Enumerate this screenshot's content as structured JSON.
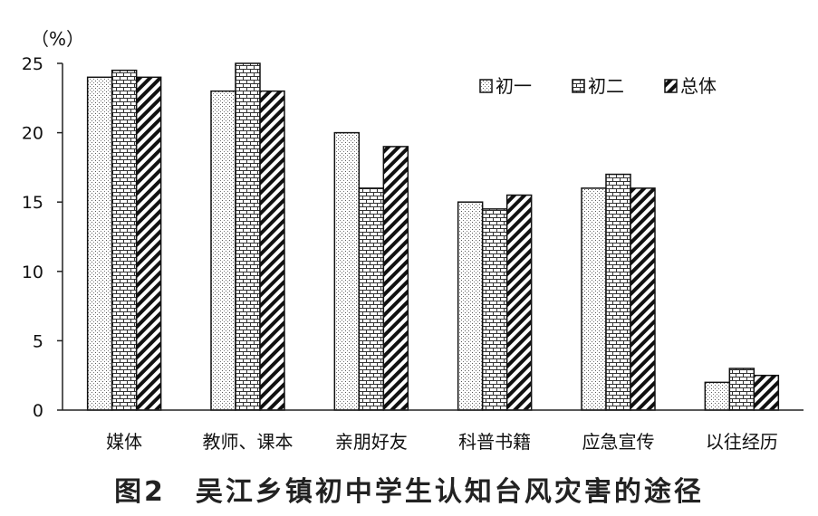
{
  "caption": "图2　吴江乡镇初中学生认知台风灾害的途径",
  "chart_data": {
    "type": "bar",
    "unit": "（%）",
    "categories": [
      "媒体",
      "教师、课本",
      "亲朋好友",
      "科普书籍",
      "应急宣传",
      "以往经历"
    ],
    "series": [
      {
        "name": "初一",
        "values": [
          24,
          23,
          20,
          15,
          16,
          2
        ],
        "pattern": "dots"
      },
      {
        "name": "初二",
        "values": [
          24.5,
          25,
          16,
          14.5,
          17,
          3
        ],
        "pattern": "bricks"
      },
      {
        "name": "总体",
        "values": [
          24,
          23,
          19,
          15.5,
          16,
          2.5
        ],
        "pattern": "hatch"
      }
    ],
    "ylim": [
      0,
      25
    ],
    "yticks": [
      0,
      5,
      10,
      15,
      20,
      25
    ],
    "legend_position": "top-right",
    "grid": false
  }
}
